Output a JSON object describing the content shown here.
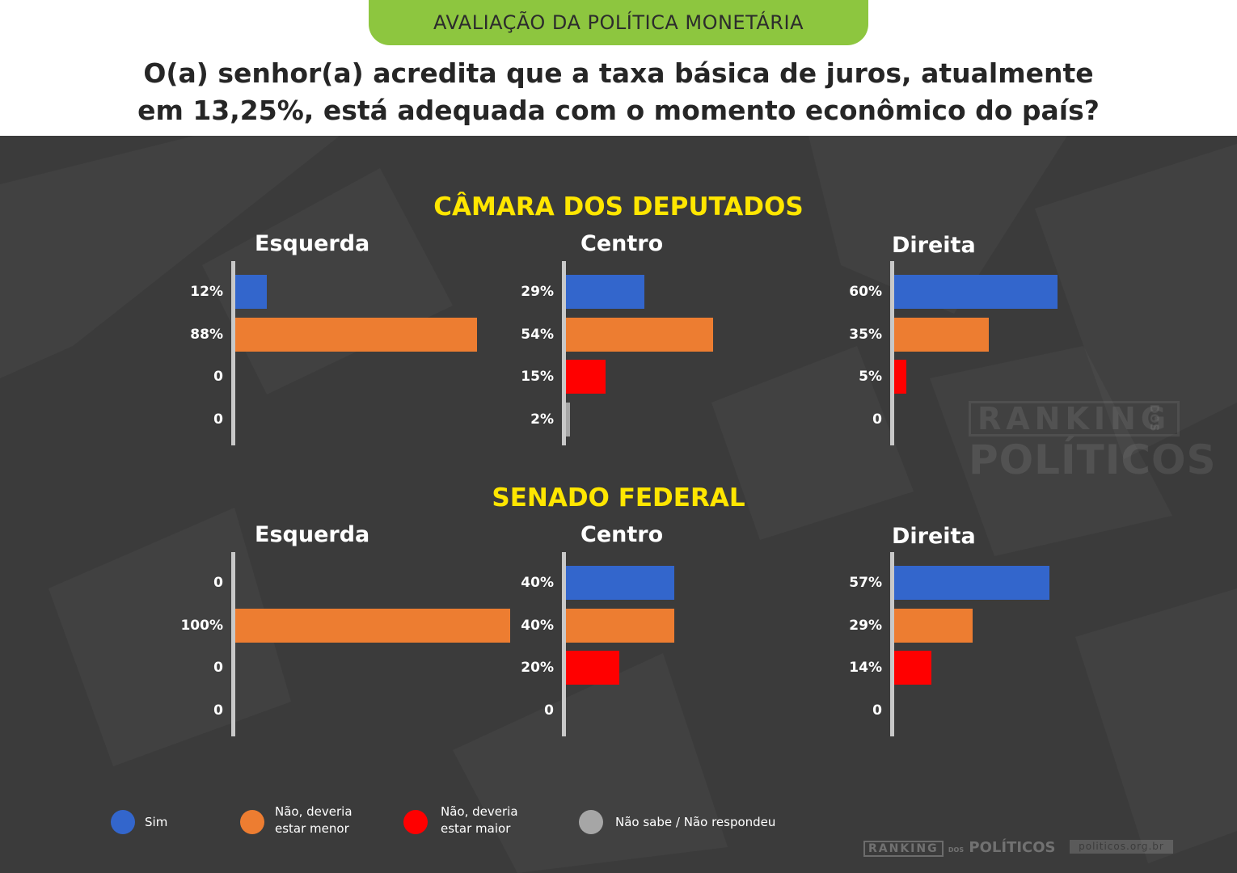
{
  "header": {
    "tag": "AVALIAÇÃO DA POLÍTICA MONETÁRIA",
    "question_line1": "O(a) senhor(a) acredita que a taxa básica de juros, atualmente",
    "question_line2": "em 13,25%, está adequada com o momento econômico do país?"
  },
  "colors": {
    "sim": "#3366cc",
    "menor": "#ed7d31",
    "maior": "#ff0000",
    "nao_sabe": "#a6a6a6",
    "section": "#ffe600",
    "background": "#3b3b3b"
  },
  "chart_data": [
    {
      "type": "bar",
      "orientation": "horizontal",
      "section": "CÂMARA DOS DEPUTADOS",
      "title": "Esquerda",
      "categories": [
        "Sim",
        "Não, deveria estar menor",
        "Não, deveria estar maior",
        "Não sabe / Não respondeu"
      ],
      "values": [
        12,
        88,
        0,
        0
      ],
      "labels": [
        "12%",
        "88%",
        "0",
        "0"
      ]
    },
    {
      "type": "bar",
      "orientation": "horizontal",
      "section": "CÂMARA DOS DEPUTADOS",
      "title": "Centro",
      "categories": [
        "Sim",
        "Não, deveria estar menor",
        "Não, deveria estar maior",
        "Não sabe / Não respondeu"
      ],
      "values": [
        29,
        54,
        15,
        2
      ],
      "labels": [
        "29%",
        "54%",
        "15%",
        "2%"
      ]
    },
    {
      "type": "bar",
      "orientation": "horizontal",
      "section": "CÂMARA DOS DEPUTADOS",
      "title": "Direita",
      "categories": [
        "Sim",
        "Não, deveria estar menor",
        "Não, deveria estar maior",
        "Não sabe / Não respondeu"
      ],
      "values": [
        60,
        35,
        5,
        0
      ],
      "labels": [
        "60%",
        "35%",
        "5%",
        "0"
      ]
    },
    {
      "type": "bar",
      "orientation": "horizontal",
      "section": "SENADO FEDERAL",
      "title": "Esquerda",
      "categories": [
        "Sim",
        "Não, deveria estar menor",
        "Não, deveria estar maior",
        "Não sabe / Não respondeu"
      ],
      "values": [
        0,
        100,
        0,
        0
      ],
      "labels": [
        "0",
        "100%",
        "0",
        "0"
      ]
    },
    {
      "type": "bar",
      "orientation": "horizontal",
      "section": "SENADO FEDERAL",
      "title": "Centro",
      "categories": [
        "Sim",
        "Não, deveria estar menor",
        "Não, deveria estar maior",
        "Não sabe / Não respondeu"
      ],
      "values": [
        40,
        40,
        20,
        0
      ],
      "labels": [
        "40%",
        "40%",
        "20%",
        "0"
      ]
    },
    {
      "type": "bar",
      "orientation": "horizontal",
      "section": "SENADO FEDERAL",
      "title": "Direita",
      "categories": [
        "Sim",
        "Não, deveria estar menor",
        "Não, deveria estar maior",
        "Não sabe / Não respondeu"
      ],
      "values": [
        57,
        29,
        14,
        0
      ],
      "labels": [
        "57%",
        "29%",
        "14%",
        "0"
      ]
    }
  ],
  "sections": [
    "CÂMARA DOS DEPUTADOS",
    "SENADO FEDERAL"
  ],
  "legend": [
    {
      "line1": "Sim",
      "line2": "",
      "color": "#3366cc"
    },
    {
      "line1": "Não, deveria",
      "line2": "estar menor",
      "color": "#ed7d31"
    },
    {
      "line1": "Não, deveria",
      "line2": "estar maior",
      "color": "#ff0000"
    },
    {
      "line1": "Não sabe / Não respondeu",
      "line2": "",
      "color": "#a6a6a6"
    }
  ],
  "watermark": {
    "top": "RANKING",
    "dos": "DOS",
    "bottom": "POLÍTICOS"
  },
  "footer": {
    "logo_boxed": "RANKING",
    "logo_dos": "DOS",
    "logo_main": "POLÍTICOS",
    "url": "politicos.org.br"
  }
}
